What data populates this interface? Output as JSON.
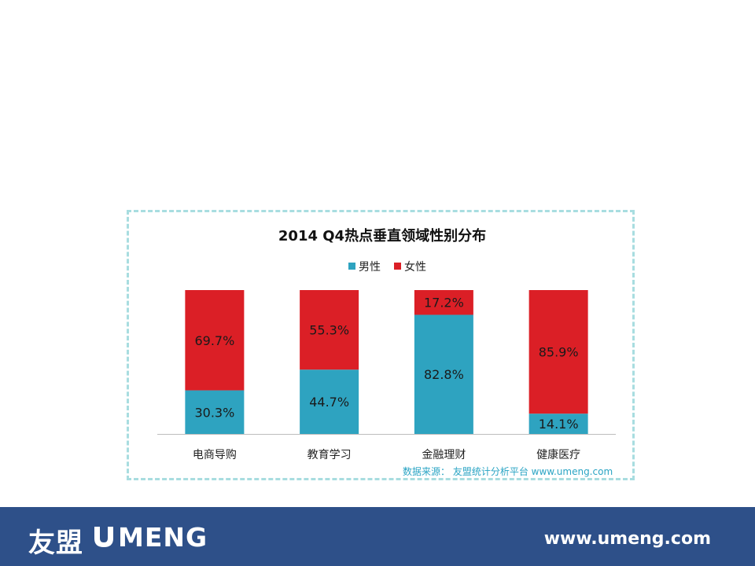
{
  "chart_data": {
    "type": "bar",
    "stacked": true,
    "title": "2014 Q4热点垂直领域性别分布",
    "categories": [
      "电商导购",
      "教育学习",
      "金融理财",
      "健康医疗"
    ],
    "series": [
      {
        "name": "男性",
        "color": "#2ea3c0",
        "values": [
          30.3,
          44.7,
          82.8,
          14.1
        ],
        "labels": [
          "30.3%",
          "44.7%",
          "82.8%",
          "14.1%"
        ]
      },
      {
        "name": "女性",
        "color": "#db1f26",
        "values": [
          69.7,
          55.3,
          17.2,
          85.9
        ],
        "labels": [
          "69.7%",
          "55.3%",
          "17.2%",
          "85.9%"
        ]
      }
    ],
    "ylim": [
      0,
      100
    ],
    "legend": "top",
    "grid": false
  },
  "source_note": "数据来源： 友盟统计分析平台 www.umeng.com",
  "footer": {
    "logo_cn": "友盟",
    "logo_en": "MENG",
    "url": "www.umeng.com"
  }
}
